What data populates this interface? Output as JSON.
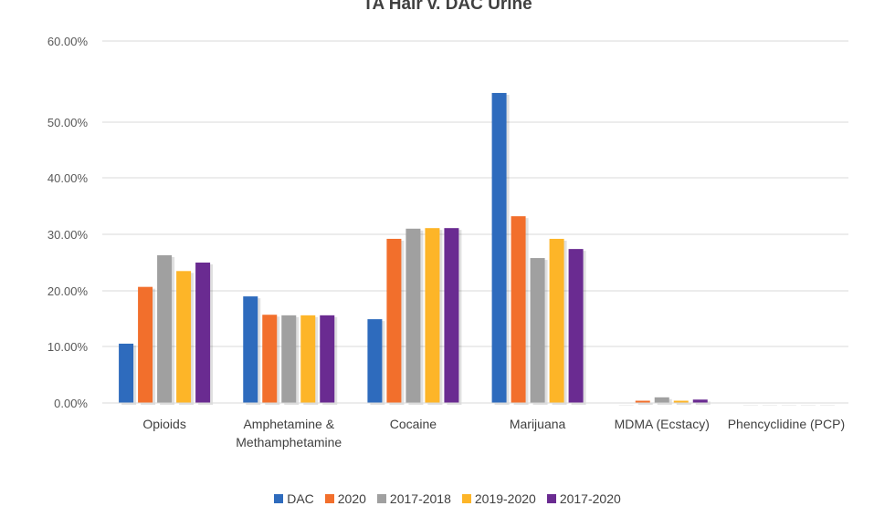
{
  "chart_data": {
    "type": "bar",
    "title": "TA Hair v. DAC Urine",
    "xlabel": "",
    "ylabel": "",
    "ylim": [
      0,
      60
    ],
    "yticks": [
      "0.00%",
      "10.00%",
      "20.00%",
      "30.00%",
      "40.00%",
      "50.00%",
      "60.00%"
    ],
    "grid": true,
    "legend_position": "bottom",
    "categories": [
      "Opioids",
      "Amphetamine & Methamphetamine",
      "Cocaine",
      "Marijuana",
      "MDMA (Ecstacy)",
      "Phencyclidine (PCP)"
    ],
    "category_lines": [
      [
        "Opioids"
      ],
      [
        "Amphetamine &",
        "Methamphetamine"
      ],
      [
        "Cocaine"
      ],
      [
        "Marijuana"
      ],
      [
        "MDMA (Ecstacy)"
      ],
      [
        "Phencyclidine (PCP)"
      ]
    ],
    "series": [
      {
        "name": "DAC",
        "color": "#2e6bbd",
        "values": [
          10.5,
          19.0,
          14.9,
          53.6,
          0.0,
          0.0
        ]
      },
      {
        "name": "2020",
        "color": "#f26f2c",
        "values": [
          20.7,
          15.7,
          29.2,
          33.2,
          0.4,
          0.0
        ]
      },
      {
        "name": "2017-2018",
        "color": "#a0a0a0",
        "values": [
          26.3,
          15.6,
          31.0,
          25.8,
          1.0,
          0.0
        ]
      },
      {
        "name": "2019-2020",
        "color": "#fdb528",
        "values": [
          23.5,
          15.6,
          31.1,
          29.2,
          0.4,
          0.0
        ]
      },
      {
        "name": "2017-2020",
        "color": "#6a2b91",
        "values": [
          25.0,
          15.6,
          31.1,
          27.4,
          0.6,
          0.0
        ]
      }
    ]
  }
}
